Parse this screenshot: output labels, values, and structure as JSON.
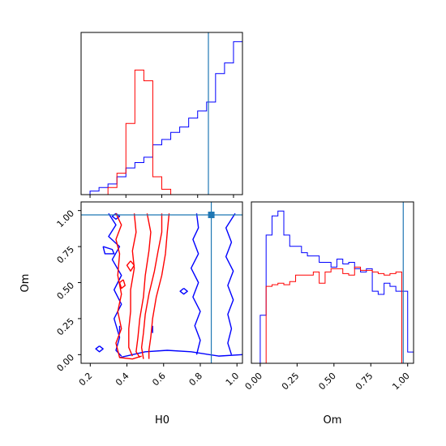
{
  "chart_data": {
    "type": "corner",
    "parameters": [
      "H0",
      "Om"
    ],
    "truths": {
      "H0": 0.86,
      "Om": 0.97
    },
    "series_colors": {
      "blue": "#0000ff",
      "red": "#ff0000",
      "truth": "#1f77b4"
    },
    "panels": [
      {
        "id": "H0-marginal",
        "type": "histogram-step",
        "xlim": [
          0.15,
          1.05
        ],
        "bin_edges": [
          0.15,
          0.2,
          0.25,
          0.3,
          0.35,
          0.4,
          0.45,
          0.5,
          0.55,
          0.6,
          0.65,
          0.7,
          0.75,
          0.8,
          0.85,
          0.9,
          0.95,
          1.0,
          1.05
        ],
        "series": [
          {
            "color": "blue",
            "values": [
              0,
              2,
              4,
              6,
              10,
              15,
              18,
              21,
              28,
              31,
              35,
              38,
              43,
              47,
              52,
              68,
              74,
              86
            ]
          },
          {
            "color": "red",
            "values": [
              0,
              0,
              0,
              4,
              12,
              40,
              70,
              64,
              10,
              3,
              0,
              0,
              0,
              0,
              0,
              0,
              0,
              0
            ]
          }
        ]
      },
      {
        "id": "H0-Om-2d",
        "type": "contour",
        "xlabel": "H0",
        "ylabel": "Om",
        "xlim": [
          0.15,
          1.03
        ],
        "ylim": [
          -0.06,
          1.06
        ],
        "xticks": [
          "0.2",
          "0.4",
          "0.6",
          "0.8",
          "1.0"
        ],
        "yticks": [
          "0.00",
          "0.25",
          "0.50",
          "0.75",
          "1.00"
        ],
        "contours": [
          {
            "color": "blue",
            "points": [
              [
                0.36,
                -0.02
              ],
              [
                0.5,
                0.02
              ],
              [
                0.62,
                0.03
              ],
              [
                0.75,
                0.02
              ],
              [
                0.9,
                -0.01
              ],
              [
                1.03,
                0.0
              ]
            ]
          },
          {
            "color": "blue",
            "points": [
              [
                0.3,
                0.98
              ],
              [
                0.34,
                0.9
              ],
              [
                0.3,
                0.82
              ],
              [
                0.36,
                0.75
              ],
              [
                0.32,
                0.66
              ],
              [
                0.37,
                0.55
              ],
              [
                0.33,
                0.45
              ],
              [
                0.37,
                0.35
              ],
              [
                0.33,
                0.25
              ],
              [
                0.36,
                0.12
              ],
              [
                0.34,
                0.03
              ],
              [
                0.37,
                -0.01
              ]
            ]
          },
          {
            "color": "blue",
            "points": [
              [
                0.78,
                0.98
              ],
              [
                0.79,
                0.88
              ],
              [
                0.76,
                0.8
              ],
              [
                0.79,
                0.7
              ],
              [
                0.75,
                0.6
              ],
              [
                0.79,
                0.5
              ],
              [
                0.76,
                0.4
              ],
              [
                0.8,
                0.3
              ],
              [
                0.77,
                0.2
              ],
              [
                0.8,
                0.1
              ],
              [
                0.78,
                0.0
              ]
            ]
          },
          {
            "color": "blue",
            "points": [
              [
                0.99,
                0.98
              ],
              [
                0.94,
                0.88
              ],
              [
                0.97,
                0.78
              ],
              [
                0.94,
                0.68
              ],
              [
                0.98,
                0.58
              ],
              [
                0.95,
                0.48
              ],
              [
                0.98,
                0.38
              ],
              [
                0.95,
                0.28
              ],
              [
                0.97,
                0.18
              ],
              [
                0.95,
                0.08
              ],
              [
                0.97,
                0.0
              ]
            ]
          },
          {
            "color": "blue",
            "points": [
              [
                0.34,
                0.98
              ],
              [
                0.36,
                0.96
              ],
              [
                0.34,
                0.94
              ],
              [
                0.32,
                0.96
              ],
              [
                0.34,
                0.98
              ]
            ]
          },
          {
            "color": "blue",
            "points": [
              [
                0.27,
                0.75
              ],
              [
                0.32,
                0.73
              ],
              [
                0.33,
                0.7
              ],
              [
                0.28,
                0.7
              ],
              [
                0.27,
                0.75
              ]
            ]
          },
          {
            "color": "blue",
            "points": [
              [
                0.71,
                0.46
              ],
              [
                0.73,
                0.44
              ],
              [
                0.71,
                0.42
              ],
              [
                0.69,
                0.44
              ],
              [
                0.71,
                0.46
              ]
            ]
          },
          {
            "color": "blue",
            "points": [
              [
                0.25,
                0.06
              ],
              [
                0.27,
                0.04
              ],
              [
                0.25,
                0.02
              ],
              [
                0.23,
                0.04
              ],
              [
                0.25,
                0.06
              ]
            ]
          },
          {
            "color": "blue",
            "points": [
              [
                0.54,
                0.15
              ],
              [
                0.54,
                0.2
              ]
            ]
          },
          {
            "color": "blue",
            "points": [
              [
                0.36,
                0.15
              ],
              [
                0.36,
                0.2
              ]
            ]
          },
          {
            "color": "red",
            "points": [
              [
                0.34,
                0.98
              ],
              [
                0.37,
                0.9
              ],
              [
                0.34,
                0.8
              ],
              [
                0.36,
                0.7
              ],
              [
                0.35,
                0.55
              ],
              [
                0.37,
                0.42
              ],
              [
                0.35,
                0.3
              ],
              [
                0.37,
                0.18
              ],
              [
                0.34,
                0.08
              ],
              [
                0.36,
                -0.02
              ],
              [
                0.43,
                -0.03
              ],
              [
                0.48,
                -0.01
              ]
            ]
          },
          {
            "color": "red",
            "points": [
              [
                0.44,
                0.98
              ],
              [
                0.45,
                0.85
              ],
              [
                0.43,
                0.72
              ],
              [
                0.44,
                0.6
              ],
              [
                0.42,
                0.45
              ],
              [
                0.42,
                0.3
              ],
              [
                0.41,
                0.18
              ],
              [
                0.41,
                0.05
              ],
              [
                0.43,
                -0.01
              ]
            ]
          },
          {
            "color": "red",
            "points": [
              [
                0.51,
                0.98
              ],
              [
                0.53,
                0.85
              ],
              [
                0.52,
                0.72
              ],
              [
                0.5,
                0.55
              ],
              [
                0.49,
                0.4
              ],
              [
                0.47,
                0.25
              ],
              [
                0.46,
                0.12
              ],
              [
                0.45,
                0.02
              ],
              [
                0.47,
                -0.02
              ]
            ]
          },
          {
            "color": "red",
            "points": [
              [
                0.59,
                0.98
              ],
              [
                0.59,
                0.85
              ],
              [
                0.57,
                0.72
              ],
              [
                0.55,
                0.58
              ],
              [
                0.52,
                0.42
              ],
              [
                0.5,
                0.28
              ],
              [
                0.49,
                0.15
              ],
              [
                0.48,
                0.05
              ],
              [
                0.49,
                -0.03
              ]
            ]
          },
          {
            "color": "red",
            "points": [
              [
                0.63,
                0.98
              ],
              [
                0.62,
                0.85
              ],
              [
                0.61,
                0.7
              ],
              [
                0.59,
                0.55
              ],
              [
                0.56,
                0.4
              ],
              [
                0.54,
                0.25
              ],
              [
                0.53,
                0.12
              ],
              [
                0.52,
                0.03
              ],
              [
                0.52,
                -0.03
              ]
            ]
          },
          {
            "color": "red",
            "points": [
              [
                0.42,
                0.65
              ],
              [
                0.44,
                0.62
              ],
              [
                0.42,
                0.58
              ],
              [
                0.4,
                0.62
              ],
              [
                0.42,
                0.65
              ]
            ]
          },
          {
            "color": "red",
            "points": [
              [
                0.38,
                0.52
              ],
              [
                0.39,
                0.48
              ],
              [
                0.37,
                0.46
              ],
              [
                0.36,
                0.5
              ],
              [
                0.38,
                0.52
              ]
            ]
          }
        ]
      },
      {
        "id": "Om-marginal",
        "type": "histogram-step",
        "xlabel": "Om",
        "xlim": [
          -0.06,
          1.04
        ],
        "xticks": [
          "0.00",
          "0.25",
          "0.50",
          "0.75",
          "1.00"
        ],
        "bin_edges": [
          -0.04,
          0.0,
          0.04,
          0.08,
          0.12,
          0.16,
          0.2,
          0.24,
          0.28,
          0.32,
          0.36,
          0.4,
          0.44,
          0.48,
          0.52,
          0.56,
          0.6,
          0.64,
          0.68,
          0.72,
          0.76,
          0.8,
          0.84,
          0.88,
          0.92,
          0.96,
          1.0,
          1.04
        ],
        "series": [
          {
            "color": "blue",
            "values": [
              0,
              30,
              80,
              92,
              95,
              80,
              73,
              73,
              69,
              67,
              67,
              63,
              63,
              60,
              65,
              62,
              63,
              59,
              57,
              59,
              45,
              43,
              50,
              48,
              45,
              45,
              7
            ]
          },
          {
            "color": "red",
            "values": [
              0,
              0,
              48,
              49,
              50,
              49,
              51,
              55,
              55,
              55,
              57,
              50,
              57,
              59,
              59,
              56,
              55,
              60,
              58,
              58,
              57,
              56,
              55,
              56,
              57,
              0,
              0
            ]
          }
        ]
      }
    ]
  }
}
